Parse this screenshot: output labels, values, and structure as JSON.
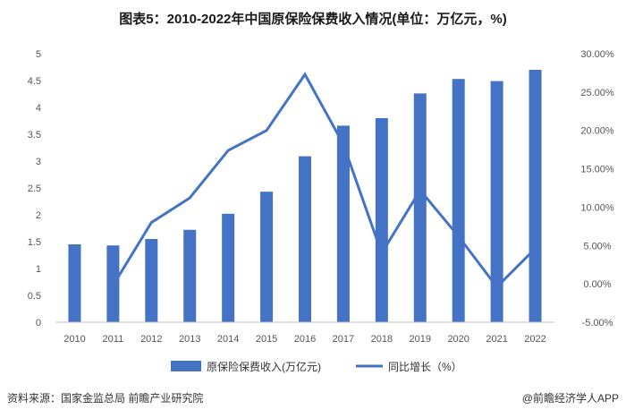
{
  "title": "图表5：2010-2022年中国原保险保费收入情况(单位：万亿元，%)",
  "source_text": "资料来源：国家金监总局 前瞻产业研究院",
  "brand_text": "@前瞻经济学人APP",
  "chart_data": {
    "type": "bar",
    "categories": [
      "2010",
      "2011",
      "2012",
      "2013",
      "2014",
      "2015",
      "2016",
      "2017",
      "2018",
      "2019",
      "2020",
      "2021",
      "2022"
    ],
    "series": [
      {
        "name": "原保险保费收入(万亿元)",
        "type": "bar",
        "axis": "left",
        "color": "#4472c4",
        "values": [
          1.45,
          1.43,
          1.55,
          1.72,
          2.02,
          2.43,
          3.09,
          3.66,
          3.8,
          4.26,
          4.53,
          4.49,
          4.7
        ]
      },
      {
        "name": "同比增长（%）",
        "type": "line",
        "axis": "right",
        "color": "#4472c4",
        "values": [
          null,
          -0.2,
          8.0,
          11.2,
          17.4,
          20.0,
          27.3,
          18.2,
          4.0,
          12.2,
          6.2,
          -0.4,
          4.6
        ]
      }
    ],
    "ylim_left": [
      0,
      5
    ],
    "yticks_left": [
      "0",
      "0.5",
      "1",
      "1.5",
      "2",
      "2.5",
      "3",
      "3.5",
      "4",
      "4.5",
      "5"
    ],
    "ylim_right": [
      -5,
      30
    ],
    "yticks_right": [
      "-5.00%",
      "0.00%",
      "5.00%",
      "10.00%",
      "15.00%",
      "20.00%",
      "25.00%",
      "30.00%"
    ],
    "legend": [
      "原保险保费收入(万亿元)",
      "同比增长（%）"
    ],
    "legend_position": "bottom"
  }
}
